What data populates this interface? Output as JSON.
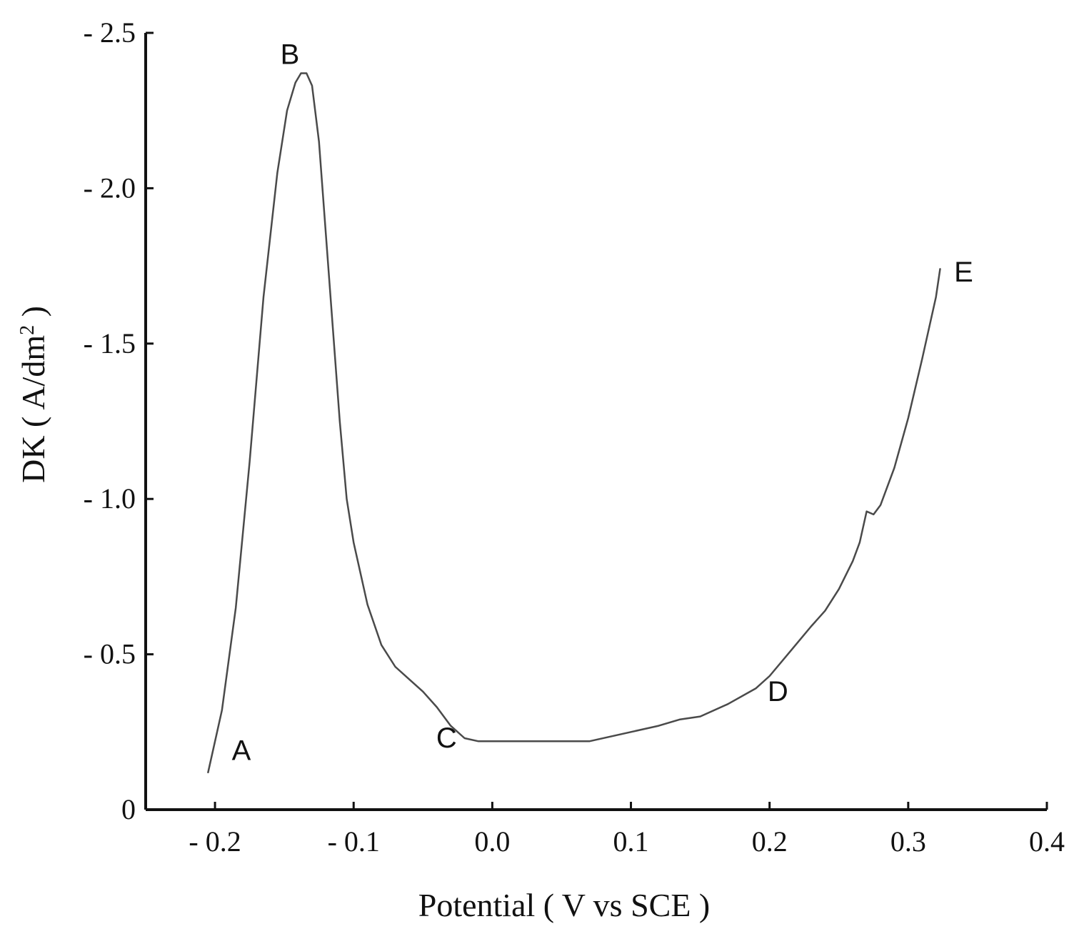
{
  "chart_data": {
    "type": "line",
    "xlabel": "Potential ( V vs SCE )",
    "ylabel": "DK ( A/dm",
    "ylabel_superscript": "2",
    "ylabel_suffix": " )",
    "xlim": [
      -0.25,
      0.4
    ],
    "ylim": [
      0,
      -2.5
    ],
    "x_ticks": [
      -0.2,
      -0.1,
      0.0,
      0.1,
      0.2,
      0.3,
      0.4
    ],
    "x_tick_labels": [
      "- 0.2",
      "- 0.1",
      "0.0",
      "0.1",
      "0.2",
      "0.3",
      "0.4"
    ],
    "y_ticks": [
      0,
      -0.5,
      -1.0,
      -1.5,
      -2.0,
      -2.5
    ],
    "y_tick_labels": [
      "0",
      "- 0.5",
      "- 1.0",
      "- 1.5",
      "- 2.0",
      "- 2.5"
    ],
    "grid": false,
    "line_color": "#4a4a4a",
    "series": [
      {
        "x": [
          -0.205,
          -0.195,
          -0.185,
          -0.175,
          -0.165,
          -0.155,
          -0.148,
          -0.142,
          -0.138,
          -0.134,
          -0.13,
          -0.125,
          -0.12,
          -0.115,
          -0.11,
          -0.105,
          -0.1,
          -0.09,
          -0.08,
          -0.07,
          -0.06,
          -0.05,
          -0.04,
          -0.03,
          -0.02,
          -0.01,
          0.0,
          0.01,
          0.02,
          0.04,
          0.07,
          0.1,
          0.12,
          0.135,
          0.15,
          0.17,
          0.19,
          0.2,
          0.215,
          0.23,
          0.24,
          0.25,
          0.26,
          0.265,
          0.27,
          0.275,
          0.28,
          0.29,
          0.3,
          0.31,
          0.32,
          0.323
        ],
        "y": [
          -0.12,
          -0.32,
          -0.65,
          -1.12,
          -1.65,
          -2.05,
          -2.25,
          -2.34,
          -2.37,
          -2.37,
          -2.33,
          -2.15,
          -1.85,
          -1.55,
          -1.25,
          -1.0,
          -0.86,
          -0.66,
          -0.53,
          -0.46,
          -0.42,
          -0.38,
          -0.33,
          -0.27,
          -0.23,
          -0.22,
          -0.22,
          -0.22,
          -0.22,
          -0.22,
          -0.22,
          -0.25,
          -0.27,
          -0.29,
          -0.3,
          -0.34,
          -0.39,
          -0.43,
          -0.51,
          -0.59,
          -0.64,
          -0.71,
          -0.8,
          -0.86,
          -0.96,
          -0.95,
          -0.98,
          -1.1,
          -1.26,
          -1.45,
          -1.65,
          -1.74
        ]
      }
    ],
    "annotations": [
      {
        "text": "A",
        "x": -0.181,
        "y": -0.16
      },
      {
        "text": "B",
        "x": -0.146,
        "y": -2.4
      },
      {
        "text": "C",
        "x": -0.033,
        "y": -0.2
      },
      {
        "text": "D",
        "x": 0.206,
        "y": -0.35
      },
      {
        "text": "E",
        "x": 0.34,
        "y": -1.7
      }
    ]
  }
}
